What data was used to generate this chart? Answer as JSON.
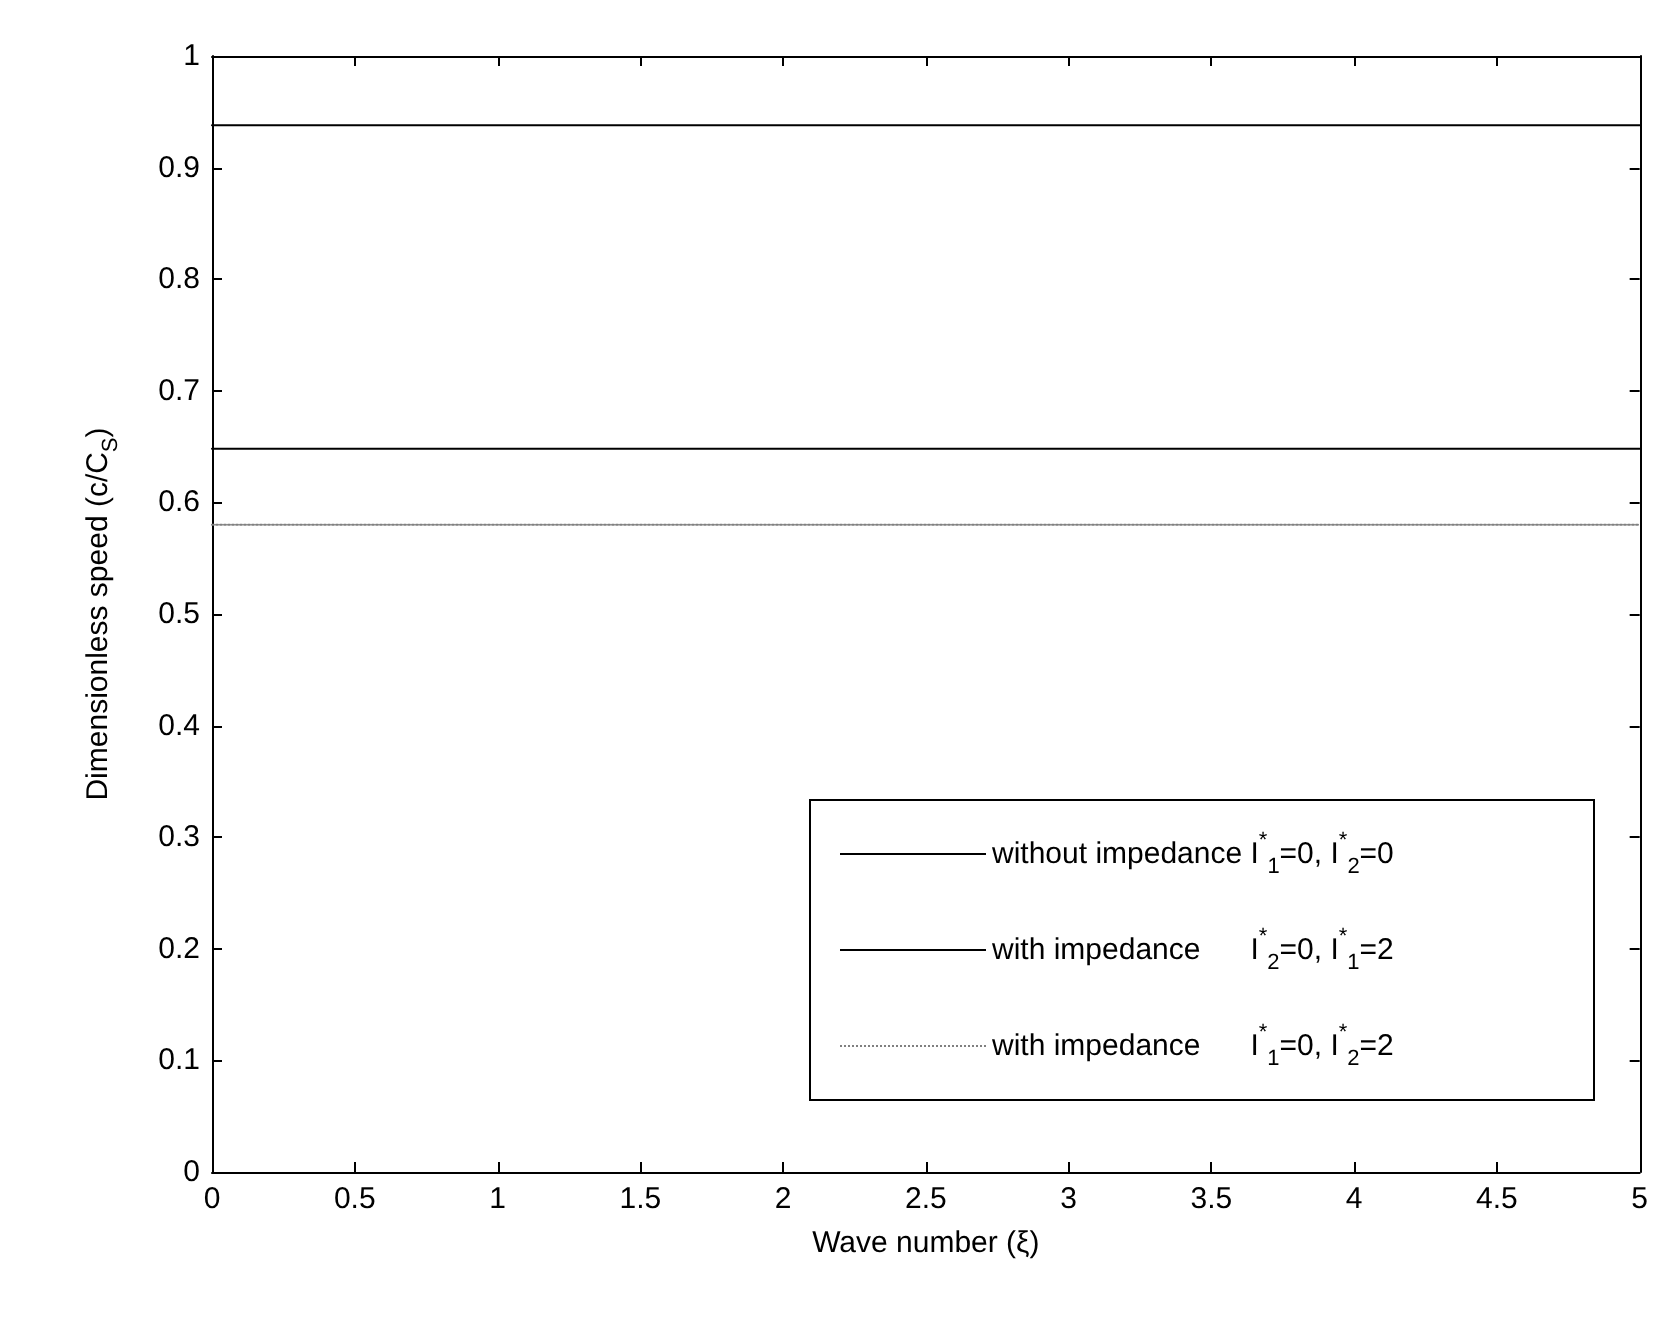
{
  "chart_data": {
    "type": "line",
    "xlabel": "Wave number (ξ)",
    "ylabel": "Dimensionless speed (c/C$_{S}$)",
    "x": [
      0,
      5
    ],
    "series": [
      {
        "name": "without impedance I$^{*}$$_{1}$=0, I$^{*}$$_{2}$=0",
        "color": "#000000",
        "values": [
          0.938,
          0.938
        ]
      },
      {
        "name": "with impedance      I$^{*}$$_{2}$=0, I$^{*}$$_{1}$=2",
        "color": "#000000",
        "values": [
          0.648,
          0.648
        ]
      },
      {
        "name": "with impedance      I$^{*}$$_{1}$=0, I$^{*}$$_{2}$=2",
        "color": "#808080",
        "values": [
          0.58,
          0.58
        ],
        "line_style": "dotted"
      }
    ],
    "xlim": [
      0,
      5
    ],
    "xticks": [
      0,
      0.5,
      1,
      1.5,
      2,
      2.5,
      3,
      3.5,
      4,
      4.5,
      5
    ],
    "ylim": [
      0,
      1
    ],
    "yticks": [
      0,
      0.1,
      0.2,
      0.3,
      0.4,
      0.5,
      0.6,
      0.7,
      0.8,
      0.9,
      1
    ],
    "grid": false,
    "legend": "bottom right",
    "marker": "none",
    "line_style": "solid"
  }
}
